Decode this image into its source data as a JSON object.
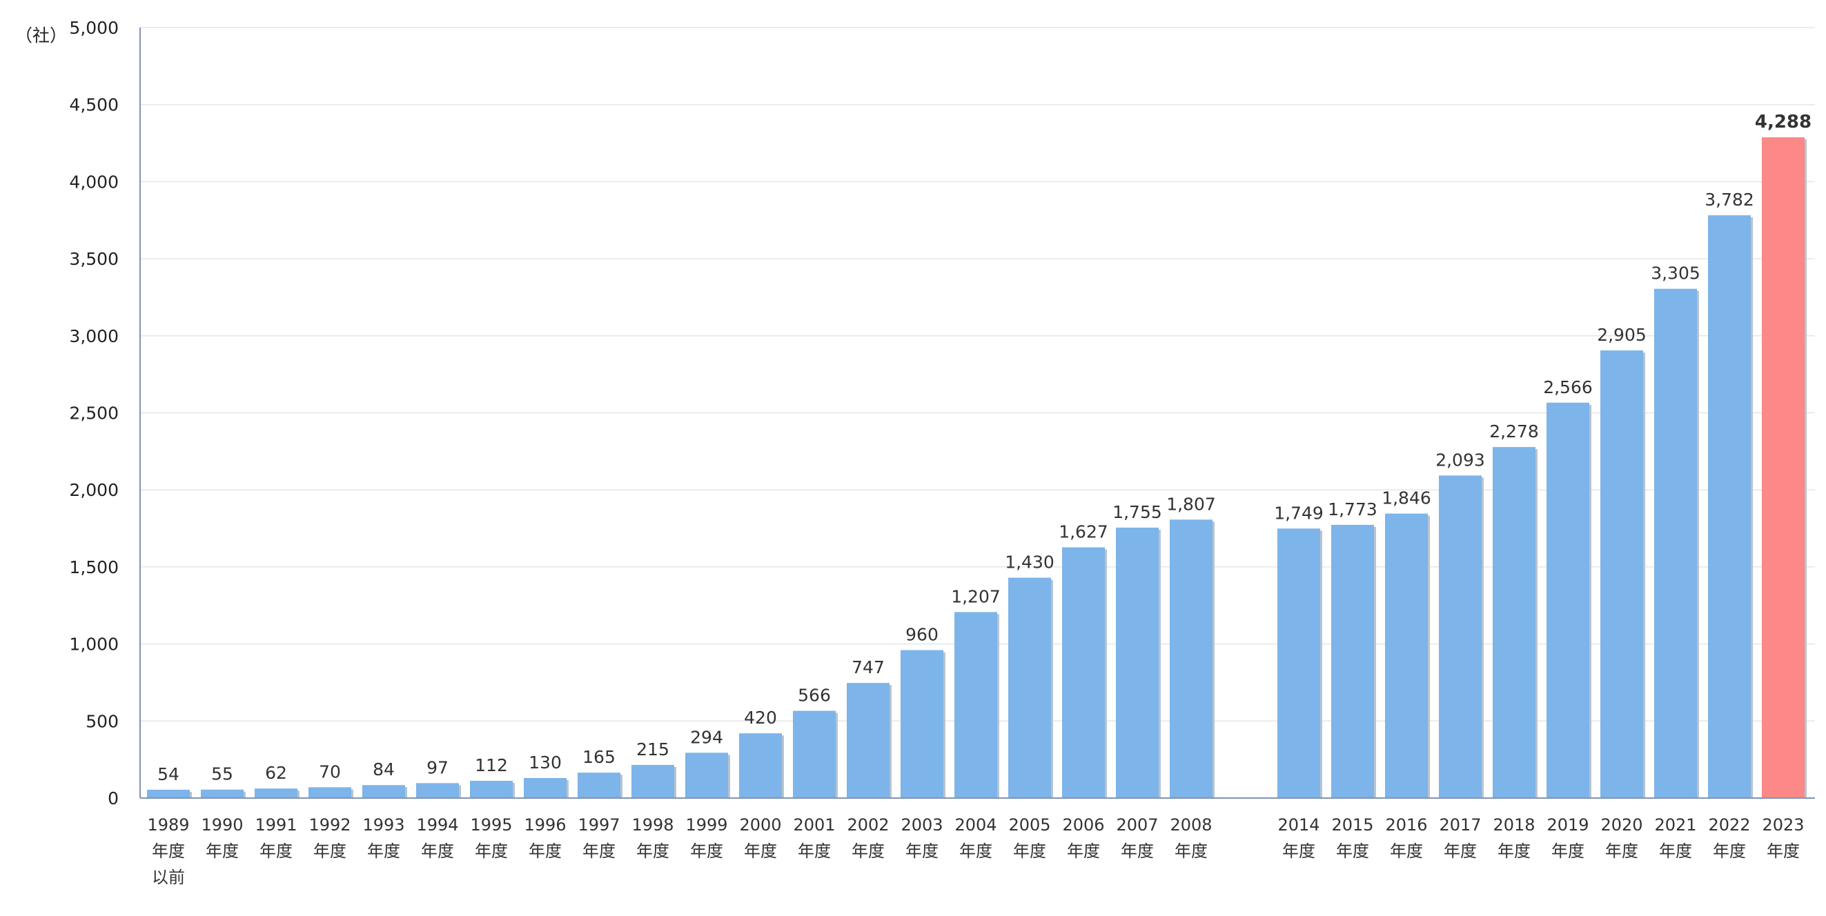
{
  "chart_data": {
    "type": "bar",
    "unit_label": "（社）",
    "ylim": [
      0,
      5000
    ],
    "yticks": [
      "0",
      "500",
      "1,000",
      "1,500",
      "2,000",
      "2,500",
      "3,000",
      "3,500",
      "4,000",
      "4,500",
      "5,000"
    ],
    "grid": true,
    "colors": {
      "bar": "#7db4ea",
      "highlight": "#fc8887",
      "bar_shadow": "#b8c3cf"
    },
    "categories": [
      [
        "1989",
        "年度",
        "以前"
      ],
      [
        "1990",
        "年度"
      ],
      [
        "1991",
        "年度"
      ],
      [
        "1992",
        "年度"
      ],
      [
        "1993",
        "年度"
      ],
      [
        "1994",
        "年度"
      ],
      [
        "1995",
        "年度"
      ],
      [
        "1996",
        "年度"
      ],
      [
        "1997",
        "年度"
      ],
      [
        "1998",
        "年度"
      ],
      [
        "1999",
        "年度"
      ],
      [
        "2000",
        "年度"
      ],
      [
        "2001",
        "年度"
      ],
      [
        "2002",
        "年度"
      ],
      [
        "2003",
        "年度"
      ],
      [
        "2004",
        "年度"
      ],
      [
        "2005",
        "年度"
      ],
      [
        "2006",
        "年度"
      ],
      [
        "2007",
        "年度"
      ],
      [
        "2008",
        "年度"
      ],
      [
        "2014",
        "年度"
      ],
      [
        "2015",
        "年度"
      ],
      [
        "2016",
        "年度"
      ],
      [
        "2017",
        "年度"
      ],
      [
        "2018",
        "年度"
      ],
      [
        "2019",
        "年度"
      ],
      [
        "2020",
        "年度"
      ],
      [
        "2021",
        "年度"
      ],
      [
        "2022",
        "年度"
      ],
      [
        "2023",
        "年度"
      ]
    ],
    "values": [
      54,
      55,
      62,
      70,
      84,
      97,
      112,
      130,
      165,
      215,
      294,
      420,
      566,
      747,
      960,
      1207,
      1430,
      1627,
      1755,
      1807,
      1749,
      1773,
      1846,
      2093,
      2278,
      2566,
      2905,
      3305,
      3782,
      4288
    ],
    "value_labels": [
      "54",
      "55",
      "62",
      "70",
      "84",
      "97",
      "112",
      "130",
      "165",
      "215",
      "294",
      "420",
      "566",
      "747",
      "960",
      "1,207",
      "1,430",
      "1,627",
      "1,755",
      "1,807",
      "1,749",
      "1,773",
      "1,846",
      "2,093",
      "2,278",
      "2,566",
      "2,905",
      "3,305",
      "3,782",
      "4,288"
    ],
    "highlight_index": 29,
    "gap_after_index": 19
  }
}
